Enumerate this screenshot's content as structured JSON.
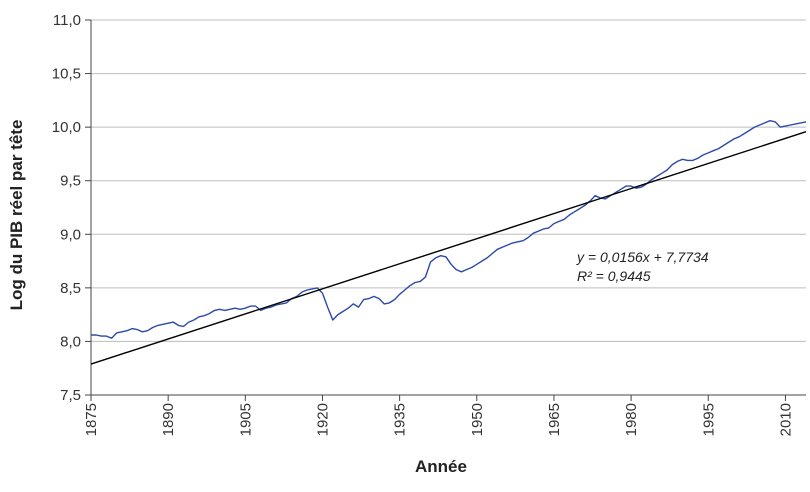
{
  "chart_data": {
    "type": "line",
    "title": "",
    "xlabel": "Année",
    "ylabel": "Log du PIB réel par tête",
    "xlim": [
      1875,
      2014
    ],
    "ylim": [
      7.5,
      11.0
    ],
    "grid": "horizontal",
    "x_ticks": [
      "1875",
      "1890",
      "1905",
      "1920",
      "1935",
      "1950",
      "1965",
      "1980",
      "1995",
      "2010"
    ],
    "y_ticks": [
      "7,5",
      "8,0",
      "8,5",
      "9,0",
      "9,5",
      "10,0",
      "10,5",
      "11,0"
    ],
    "colors": {
      "series": "#2c4aa8",
      "trend": "#000000",
      "grid": "#bdbdbd"
    },
    "series": [
      {
        "years": [
          1875,
          1876,
          1877,
          1878,
          1879,
          1880,
          1881,
          1882,
          1883,
          1884,
          1885,
          1886,
          1887,
          1888,
          1889,
          1890,
          1891,
          1892,
          1893,
          1894,
          1895,
          1896,
          1897,
          1898,
          1899,
          1900,
          1901,
          1902,
          1903,
          1904,
          1905,
          1906,
          1907,
          1908,
          1909,
          1910,
          1911,
          1912,
          1913,
          1914,
          1915,
          1916,
          1917,
          1918,
          1919,
          1920,
          1921,
          1922,
          1923,
          1924,
          1925,
          1926,
          1927,
          1928,
          1929,
          1930,
          1931,
          1932,
          1933,
          1934,
          1935,
          1936,
          1937,
          1938,
          1939,
          1940,
          1941,
          1942,
          1943,
          1944,
          1945,
          1946,
          1947,
          1948,
          1949,
          1950,
          1951,
          1952,
          1953,
          1954,
          1955,
          1956,
          1957,
          1958,
          1959,
          1960,
          1961,
          1962,
          1963,
          1964,
          1965,
          1966,
          1967,
          1968,
          1969,
          1970,
          1971,
          1972,
          1973,
          1974,
          1975,
          1976,
          1977,
          1978,
          1979,
          1980,
          1981,
          1982,
          1983,
          1984,
          1985,
          1986,
          1987,
          1988,
          1989,
          1990,
          1991,
          1992,
          1993,
          1994,
          1995,
          1996,
          1997,
          1998,
          1999,
          2000,
          2001,
          2002,
          2003,
          2004,
          2005,
          2006,
          2007,
          2008,
          2009,
          2010,
          2011,
          2012,
          2013,
          2014
        ],
        "values": [
          8.06,
          8.06,
          8.05,
          8.05,
          8.03,
          8.08,
          8.09,
          8.1,
          8.12,
          8.11,
          8.09,
          8.1,
          8.13,
          8.15,
          8.16,
          8.17,
          8.18,
          8.15,
          8.14,
          8.18,
          8.2,
          8.23,
          8.24,
          8.26,
          8.29,
          8.3,
          8.29,
          8.3,
          8.31,
          8.3,
          8.31,
          8.33,
          8.33,
          8.29,
          8.31,
          8.32,
          8.34,
          8.35,
          8.36,
          8.4,
          8.42,
          8.46,
          8.48,
          8.49,
          8.5,
          8.45,
          8.32,
          8.2,
          8.25,
          8.28,
          8.31,
          8.35,
          8.32,
          8.39,
          8.4,
          8.42,
          8.4,
          8.35,
          8.36,
          8.39,
          8.44,
          8.48,
          8.52,
          8.55,
          8.56,
          8.6,
          8.74,
          8.78,
          8.8,
          8.79,
          8.72,
          8.67,
          8.65,
          8.67,
          8.69,
          8.72,
          8.75,
          8.78,
          8.82,
          8.86,
          8.88,
          8.9,
          8.92,
          8.93,
          8.94,
          8.97,
          9.01,
          9.03,
          9.05,
          9.06,
          9.1,
          9.12,
          9.14,
          9.18,
          9.21,
          9.24,
          9.27,
          9.31,
          9.36,
          9.34,
          9.33,
          9.36,
          9.39,
          9.42,
          9.45,
          9.45,
          9.43,
          9.44,
          9.47,
          9.51,
          9.54,
          9.57,
          9.6,
          9.65,
          9.68,
          9.7,
          9.69,
          9.69,
          9.71,
          9.74,
          9.76,
          9.78,
          9.8,
          9.83,
          9.86,
          9.89,
          9.91,
          9.94,
          9.97,
          10.0,
          10.02,
          10.04,
          10.06,
          10.05,
          10.0,
          10.01,
          10.02,
          10.03,
          10.04,
          10.05
        ]
      }
    ],
    "trendline": {
      "equation": "y = 0,0156x + 7,7734",
      "r2_label": "R² = 0,9445",
      "slope": 0.0156,
      "intercept": 7.7734
    }
  }
}
